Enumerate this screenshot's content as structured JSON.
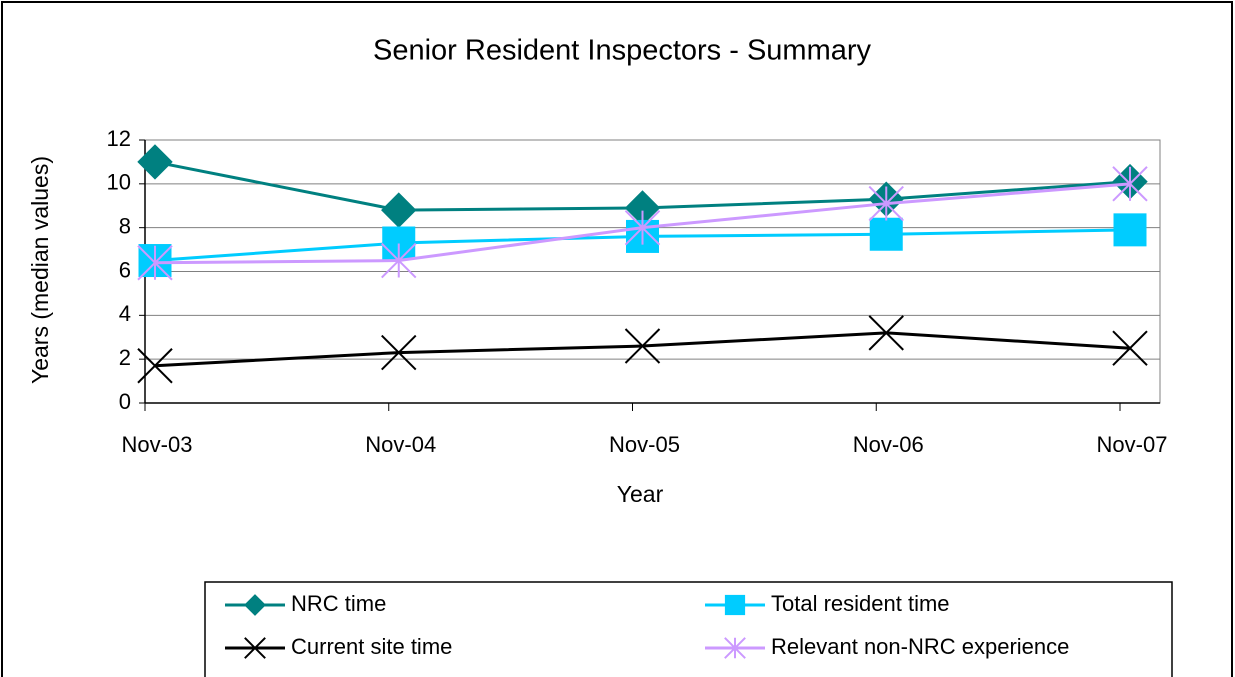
{
  "chart_data": {
    "type": "line",
    "title": "Senior Resident Inspectors - Summary",
    "x_label": "Year",
    "y_label": "Years (median values)",
    "categories": [
      "Nov-03",
      "Nov-04",
      "Nov-05",
      "Nov-06",
      "Nov-07"
    ],
    "series": [
      {
        "name": "NRC time",
        "color": "#008080",
        "marker": "diamond",
        "values": [
          11,
          8.8,
          8.9,
          9.3,
          10.1
        ]
      },
      {
        "name": "Total resident time",
        "color": "#00ccff",
        "marker": "square",
        "values": [
          6.5,
          7.3,
          7.6,
          7.7,
          7.9
        ]
      },
      {
        "name": "Current site time",
        "color": "#000000",
        "marker": "x",
        "values": [
          1.7,
          2.3,
          2.6,
          3.2,
          2.5
        ]
      },
      {
        "name": "Relevant non-NRC experience",
        "color": "#cc99ff",
        "marker": "asterisk",
        "values": [
          6.4,
          6.5,
          8.0,
          9.1,
          10.0
        ]
      }
    ],
    "ylim": [
      0,
      12
    ],
    "yticks": [
      0,
      2,
      4,
      6,
      8,
      10,
      12
    ],
    "grid": true,
    "legend": "bottom"
  }
}
